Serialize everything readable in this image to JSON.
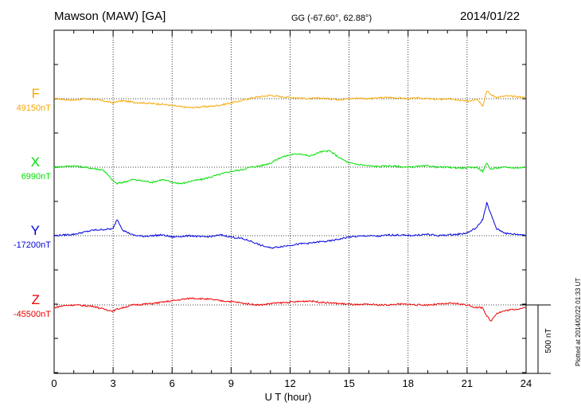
{
  "header": {
    "station": "Mawson (MAW)  [GA]",
    "coords": "GG (-67.60°,  62.88°)",
    "date": "2014/01/22"
  },
  "footer": {
    "plotted_note": "Plotted at 2014/02/22 01:33 UT"
  },
  "chart_data": {
    "type": "line",
    "title": "Mawson (MAW)  [GA]",
    "xlabel": "U T (hour)",
    "ylabel": "",
    "xlim": [
      0,
      24
    ],
    "x_ticks": [
      0,
      3,
      6,
      9,
      12,
      15,
      18,
      21,
      24
    ],
    "grid": true,
    "scale_bar": {
      "label": "500 nT",
      "value_nT": 500
    },
    "colors": {
      "F": "#f7a800",
      "X": "#00e000",
      "Y": "#0000dd",
      "Z": "#ee0000"
    },
    "x": [
      0,
      0.5,
      1,
      1.5,
      2,
      2.5,
      3,
      3.2,
      3.5,
      4,
      4.5,
      5,
      5.5,
      6,
      6.5,
      7,
      7.5,
      8,
      8.5,
      9,
      9.5,
      10,
      10.5,
      11,
      11.5,
      12,
      12.5,
      13,
      13.5,
      14,
      14.5,
      15,
      15.5,
      16,
      16.5,
      17,
      17.5,
      18,
      18.5,
      19,
      19.5,
      20,
      20.5,
      21,
      21.5,
      21.8,
      22,
      22.2,
      22.5,
      23,
      23.5,
      24
    ],
    "series": [
      {
        "name": "F",
        "baseline": "49150nT",
        "values": [
          49150,
          49145,
          49140,
          49150,
          49145,
          49135,
          49120,
          49130,
          49135,
          49125,
          49120,
          49115,
          49110,
          49100,
          49090,
          49085,
          49090,
          49095,
          49105,
          49120,
          49135,
          49155,
          49165,
          49175,
          49165,
          49160,
          49155,
          49150,
          49155,
          49150,
          49145,
          49150,
          49155,
          49150,
          49155,
          49160,
          49155,
          49150,
          49155,
          49150,
          49145,
          49150,
          49140,
          49130,
          49150,
          49100,
          49210,
          49180,
          49160,
          49170,
          49165,
          49160
        ]
      },
      {
        "name": "X",
        "baseline": "6990nT",
        "values": [
          6990,
          6995,
          7000,
          6990,
          6980,
          6970,
          6890,
          6870,
          6880,
          6900,
          6890,
          6880,
          6900,
          6880,
          6870,
          6890,
          6900,
          6920,
          6940,
          6960,
          6970,
          6990,
          7000,
          7020,
          7060,
          7080,
          7090,
          7070,
          7100,
          7110,
          7060,
          7020,
          7010,
          7000,
          6995,
          7000,
          6995,
          6990,
          6995,
          7000,
          6990,
          6990,
          6985,
          6985,
          6990,
          6960,
          7020,
          6975,
          6985,
          6990,
          6985,
          6990
        ]
      },
      {
        "name": "Y",
        "baseline": "-17200nT",
        "values": [
          -17200,
          -17195,
          -17190,
          -17175,
          -17160,
          -17155,
          -17150,
          -17080,
          -17160,
          -17195,
          -17205,
          -17200,
          -17195,
          -17210,
          -17205,
          -17200,
          -17210,
          -17205,
          -17195,
          -17210,
          -17220,
          -17240,
          -17270,
          -17290,
          -17280,
          -17270,
          -17260,
          -17255,
          -17245,
          -17240,
          -17225,
          -17210,
          -17205,
          -17200,
          -17205,
          -17195,
          -17195,
          -17200,
          -17195,
          -17190,
          -17200,
          -17195,
          -17190,
          -17180,
          -17140,
          -17080,
          -16960,
          -17040,
          -17150,
          -17185,
          -17190,
          -17195
        ]
      },
      {
        "name": "Z",
        "baseline": "-45500nT",
        "values": [
          -45520,
          -45505,
          -45500,
          -45505,
          -45510,
          -45530,
          -45545,
          -45530,
          -45520,
          -45500,
          -45495,
          -45490,
          -45480,
          -45470,
          -45460,
          -45450,
          -45455,
          -45460,
          -45470,
          -45475,
          -45485,
          -45495,
          -45500,
          -45490,
          -45485,
          -45480,
          -45475,
          -45470,
          -45480,
          -45485,
          -45490,
          -45495,
          -45500,
          -45495,
          -45500,
          -45500,
          -45495,
          -45495,
          -45500,
          -45500,
          -45495,
          -45490,
          -45490,
          -45500,
          -45520,
          -45520,
          -45580,
          -45620,
          -45560,
          -45540,
          -45530,
          -45520
        ]
      }
    ]
  }
}
